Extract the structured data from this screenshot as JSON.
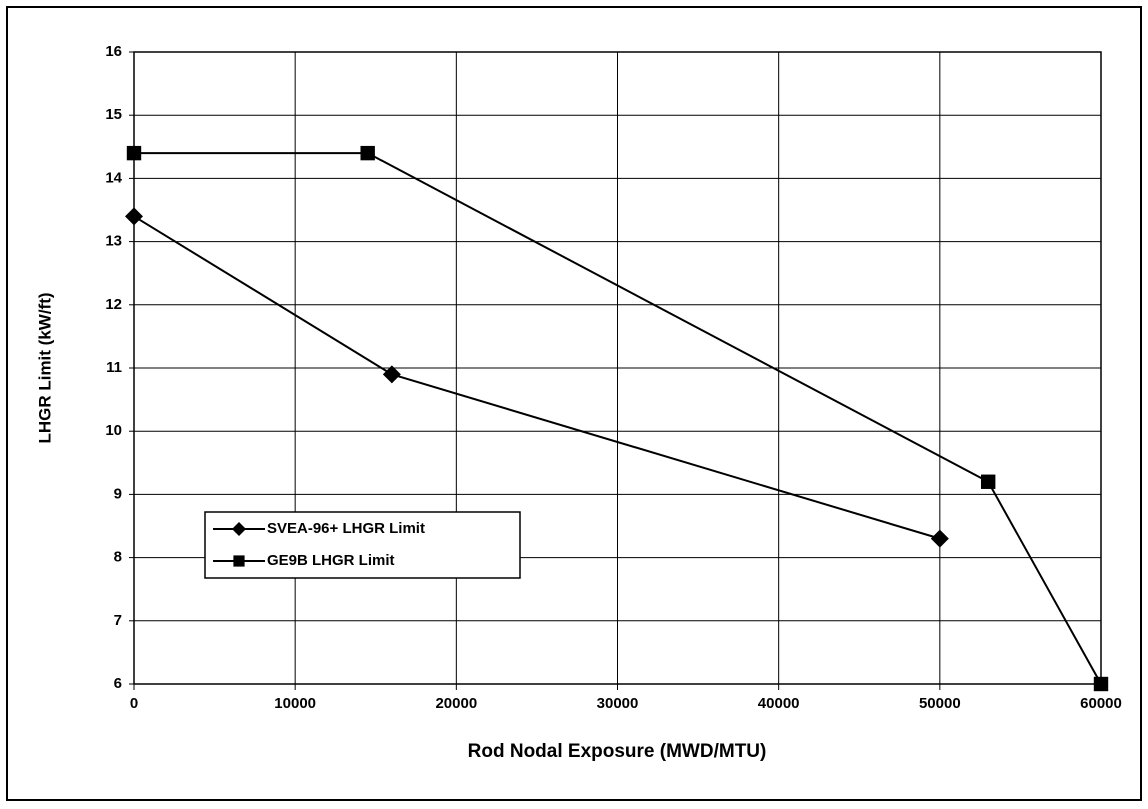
{
  "chart_data": {
    "type": "line",
    "xlabel": "Rod Nodal Exposure (MWD/MTU)",
    "ylabel": "LHGR Limit (kW/ft)",
    "series": [
      {
        "name": "SVEA-96+ LHGR Limit",
        "color": "#000000",
        "marker": "diamond",
        "x": [
          0,
          16000,
          50000
        ],
        "values": [
          13.4,
          10.9,
          8.3
        ]
      },
      {
        "name": "GE9B LHGR Limit",
        "color": "#000000",
        "marker": "square",
        "x": [
          0,
          14500,
          53000,
          60000
        ],
        "values": [
          14.4,
          14.4,
          9.2,
          6.0
        ]
      }
    ],
    "xlim": [
      0,
      60000
    ],
    "xticks": [
      0,
      10000,
      20000,
      30000,
      40000,
      50000,
      60000
    ],
    "ylim": [
      6,
      16
    ],
    "yticks": [
      6,
      7,
      8,
      9,
      10,
      11,
      12,
      13,
      14,
      15,
      16
    ],
    "grid": true,
    "legend": "lower left"
  }
}
